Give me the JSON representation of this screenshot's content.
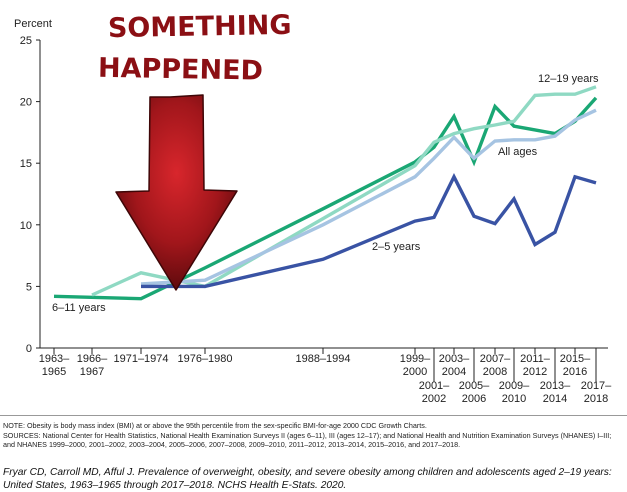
{
  "chart_data": {
    "type": "line",
    "ylabel": "Percent",
    "ylim": [
      0,
      25
    ],
    "yticks": [
      0,
      5,
      10,
      15,
      20,
      25
    ],
    "grid": false,
    "x_categories": [
      {
        "top": "1963–",
        "bottom": "1965"
      },
      {
        "top": "1966–",
        "bottom": "1967"
      },
      {
        "top": "1971–1974",
        "bottom": ""
      },
      {
        "top": "1976–1980",
        "bottom": ""
      },
      {
        "top": "1988–1994",
        "bottom": ""
      },
      {
        "top": "1999–",
        "bottom": "2000"
      },
      {
        "top": "2001–",
        "bottom": "2002"
      },
      {
        "top": "2003–",
        "bottom": "2004"
      },
      {
        "top": "2005–",
        "bottom": "2006"
      },
      {
        "top": "2007–",
        "bottom": "2008"
      },
      {
        "top": "2009–",
        "bottom": "2010"
      },
      {
        "top": "2011–",
        "bottom": "2012"
      },
      {
        "top": "2013–",
        "bottom": "2014"
      },
      {
        "top": "2015–",
        "bottom": "2016"
      },
      {
        "top": "2017–",
        "bottom": "2018"
      }
    ],
    "series": [
      {
        "name": "6–11 years",
        "color": "#1aa774",
        "points": [
          [
            0,
            4.2
          ],
          [
            2,
            4.0
          ],
          [
            3,
            6.5
          ],
          [
            4,
            11.3
          ],
          [
            5,
            15.1
          ],
          [
            6,
            16.3
          ],
          [
            7,
            18.8
          ],
          [
            8,
            15.1
          ],
          [
            9,
            19.6
          ],
          [
            10,
            18.0
          ],
          [
            11,
            17.7
          ],
          [
            12,
            17.4
          ],
          [
            13,
            18.4
          ],
          [
            14,
            20.3
          ]
        ]
      },
      {
        "name": "12–19 years",
        "color": "#8fd9c3",
        "points": [
          [
            1,
            4.3
          ],
          [
            2,
            6.1
          ],
          [
            3,
            5.0
          ],
          [
            4,
            10.5
          ],
          [
            5,
            14.8
          ],
          [
            6,
            16.7
          ],
          [
            7,
            17.4
          ],
          [
            8,
            17.8
          ],
          [
            9,
            18.1
          ],
          [
            10,
            18.4
          ],
          [
            11,
            20.5
          ],
          [
            12,
            20.6
          ],
          [
            13,
            20.6
          ],
          [
            14,
            21.2
          ]
        ]
      },
      {
        "name": "All ages",
        "color": "#a6c4e2",
        "points": [
          [
            2,
            5.2
          ],
          [
            3,
            5.5
          ],
          [
            4,
            10.0
          ],
          [
            5,
            13.9
          ],
          [
            6,
            15.4
          ],
          [
            7,
            17.1
          ],
          [
            8,
            15.4
          ],
          [
            9,
            16.8
          ],
          [
            10,
            16.9
          ],
          [
            11,
            16.9
          ],
          [
            12,
            17.2
          ],
          [
            13,
            18.5
          ],
          [
            14,
            19.3
          ]
        ]
      },
      {
        "name": "2–5 years",
        "color": "#3953a4",
        "points": [
          [
            2,
            5.0
          ],
          [
            3,
            5.0
          ],
          [
            4,
            7.2
          ],
          [
            5,
            10.3
          ],
          [
            6,
            10.6
          ],
          [
            7,
            13.9
          ],
          [
            8,
            10.7
          ],
          [
            9,
            10.1
          ],
          [
            10,
            12.1
          ],
          [
            11,
            8.4
          ],
          [
            12,
            9.4
          ],
          [
            13,
            13.9
          ],
          [
            14,
            13.4
          ]
        ]
      }
    ]
  },
  "annotation": {
    "line1": "SOMETHING",
    "line2": "HAPPENED",
    "color": "#8b0f14"
  },
  "notes": {
    "note": "NOTE: Obesity is body mass index (BMI) at or above the 95th percentile from the sex-specific BMI-for-age 2000 CDC Growth Charts.",
    "sources": "SOURCES: National Center for Health Statistics, National Health Examination Surveys II (ages 6–11), III (ages 12–17); and National Health and Nutrition Examination Surveys (NHANES) I–III; and NHANES 1999–2000, 2001–2002, 2003–2004, 2005–2006, 2007–2008, 2009–2010, 2011–2012, 2013–2014, 2015–2016, and 2017–2018."
  },
  "citation": "Fryar CD, Carroll MD, Afful J. Prevalence of overweight, obesity, and severe obesity among children and adolescents aged 2–19 years: United States, 1963–1965 through 2017–2018. NCHS Health E-Stats. 2020."
}
